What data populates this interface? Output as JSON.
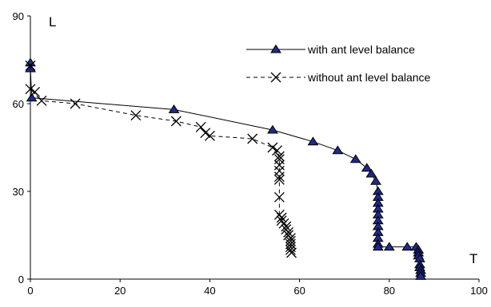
{
  "chart_data": {
    "type": "scatter",
    "xlabel": "T",
    "ylabel": "L",
    "xlim": [
      0,
      100
    ],
    "ylim": [
      0,
      90
    ],
    "xticks": [
      "0",
      "20",
      "40",
      "60",
      "80",
      "100"
    ],
    "yticks": [
      "0",
      "30",
      "60",
      "90"
    ],
    "grid": false,
    "legend_position": "top-right",
    "series": [
      {
        "name": "with ant level balance",
        "line_style": "solid",
        "marker": "triangle",
        "marker_color": "#1f2a8a",
        "line_color": "#000000",
        "points": [
          [
            0,
            74
          ],
          [
            0,
            72
          ],
          [
            0.3,
            62
          ],
          [
            32,
            58
          ],
          [
            54,
            51
          ],
          [
            63,
            47
          ],
          [
            68.5,
            44
          ],
          [
            72.5,
            41
          ],
          [
            75,
            38
          ],
          [
            76,
            36
          ],
          [
            77,
            33.5
          ],
          [
            77.5,
            30
          ],
          [
            77.5,
            28
          ],
          [
            77.5,
            26
          ],
          [
            77.5,
            24
          ],
          [
            77.5,
            22
          ],
          [
            77.5,
            20
          ],
          [
            77.5,
            18
          ],
          [
            77.5,
            16
          ],
          [
            77.5,
            14
          ],
          [
            77.5,
            12
          ],
          [
            77.5,
            11
          ],
          [
            80,
            11
          ],
          [
            84,
            11
          ],
          [
            86,
            11
          ],
          [
            86.5,
            10
          ],
          [
            86.5,
            9
          ],
          [
            86.5,
            8
          ],
          [
            86.8,
            7
          ],
          [
            86.8,
            5
          ],
          [
            86.8,
            4
          ],
          [
            87,
            3
          ],
          [
            87,
            2
          ],
          [
            87,
            1
          ]
        ]
      },
      {
        "name": "without ant level balance",
        "line_style": "dashed",
        "marker": "x",
        "marker_color": "#000000",
        "line_color": "#000000",
        "points": [
          [
            0,
            73
          ],
          [
            0,
            65
          ],
          [
            1,
            64
          ],
          [
            2.5,
            61
          ],
          [
            10,
            60
          ],
          [
            23.5,
            56
          ],
          [
            32.5,
            54
          ],
          [
            38,
            52
          ],
          [
            39,
            50
          ],
          [
            40,
            49
          ],
          [
            49.5,
            48
          ],
          [
            54,
            45
          ],
          [
            55,
            44
          ],
          [
            55.5,
            42
          ],
          [
            55.5,
            41
          ],
          [
            55.5,
            39
          ],
          [
            55.5,
            37
          ],
          [
            55.5,
            35
          ],
          [
            55.5,
            34
          ],
          [
            55.5,
            28
          ],
          [
            55.5,
            22
          ],
          [
            56,
            21
          ],
          [
            56,
            20
          ],
          [
            56.5,
            19
          ],
          [
            57,
            18
          ],
          [
            57,
            17
          ],
          [
            57.5,
            16
          ],
          [
            57.5,
            15
          ],
          [
            58,
            14
          ],
          [
            58,
            13
          ],
          [
            58,
            12
          ],
          [
            58,
            11
          ],
          [
            58,
            10
          ],
          [
            58.2,
            9
          ]
        ]
      }
    ]
  }
}
